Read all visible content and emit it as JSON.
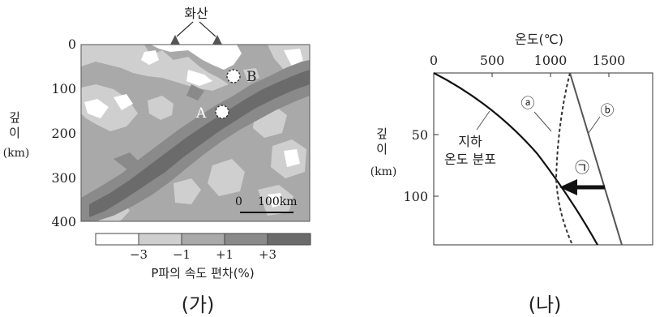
{
  "panel_a": {
    "caption": "(가)",
    "volcano_label": "화산",
    "y_axis_label_1": "깊",
    "y_axis_label_2": "이",
    "y_axis_unit": "(km)",
    "y_ticks": [
      "0",
      "100",
      "200",
      "300",
      "400"
    ],
    "scale_zero": "0",
    "scale_label": "100km",
    "point_a": "A",
    "point_b": "B",
    "legend_ticks": [
      "−3",
      "−1",
      "+1",
      "+3"
    ],
    "legend_title": "P파의 속도 편차(%)",
    "legend_colors": [
      "#ffffff",
      "#cfcfcf",
      "#a9a9a9",
      "#8a8a8a",
      "#6b6b6b"
    ]
  },
  "panel_b": {
    "caption": "(나)",
    "x_axis_title": "온도(℃)",
    "x_ticks": [
      "0",
      "500",
      "1000",
      "1500"
    ],
    "y_axis_label_1": "깊",
    "y_axis_label_2": "이",
    "y_axis_unit": "(km)",
    "y_ticks": [
      "50",
      "100"
    ],
    "curve_a_label": "ⓐ",
    "curve_b_label": "ⓑ",
    "geotherm_label_1": "지하",
    "geotherm_label_2": "온도 분포",
    "arrow_label": "㉠"
  }
}
